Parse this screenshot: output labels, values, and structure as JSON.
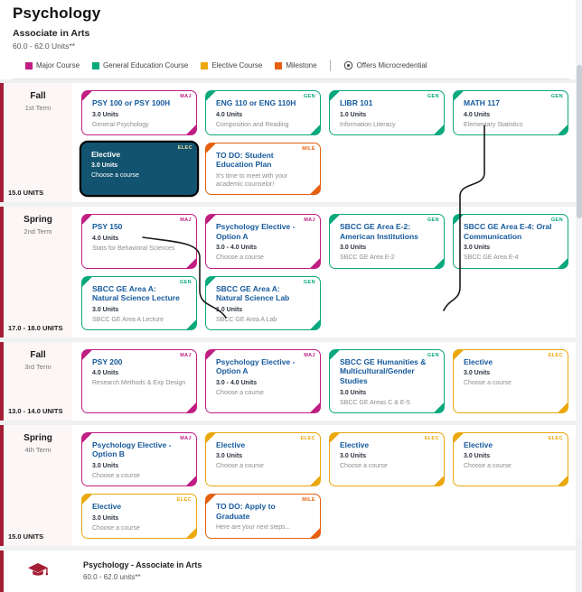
{
  "header": {
    "title": "Psychology",
    "subtitle": "Associate in Arts",
    "units": "60.0 - 62.0 Units**"
  },
  "legend": {
    "items": [
      {
        "label": "Major Course",
        "color": "#c01e82"
      },
      {
        "label": "General Education Course",
        "color": "#0aa87d"
      },
      {
        "label": "Elective Course",
        "color": "#eba70b"
      },
      {
        "label": "Milestone",
        "color": "#e5600f"
      }
    ],
    "microcredential_label": "Offers Microcredential"
  },
  "colors": {
    "major": "#c01e82",
    "ge": "#0aa87d",
    "elective": "#eba70b",
    "milestone": "#e5600f",
    "term_bar": "#a31e35",
    "selected_card_bg": "#12536f",
    "card_title": "#15599c"
  },
  "badges": {
    "major": "MAJ",
    "ge": "GEN",
    "elective": "ELEC",
    "milestone": "MILE"
  },
  "terms": [
    {
      "season": "Fall",
      "term": "1st Term",
      "units": "15.0 UNITS",
      "rows": [
        [
          {
            "title": "PSY 100 or PSY 100H",
            "units": "3.0 Units",
            "subtitle": "General Psychology",
            "type": "major"
          },
          {
            "title": "ENG 110 or ENG 110H",
            "units": "4.0 Units",
            "subtitle": "Composition and Reading",
            "type": "ge"
          },
          {
            "title": "LIBR 101",
            "units": "1.0 Units",
            "subtitle": "Information Literacy",
            "type": "ge"
          },
          {
            "title": "MATH 117",
            "units": "4.0 Units",
            "subtitle": "Elementary Statistics",
            "type": "ge"
          }
        ],
        [
          {
            "title": "Elective",
            "units": "3.0 Units",
            "subtitle": "Choose a course",
            "type": "elective",
            "selected": true
          },
          {
            "title": "TO DO: Student Education Plan",
            "units": "",
            "subtitle": "It's time to meet with your academic counselor!",
            "type": "milestone"
          }
        ]
      ]
    },
    {
      "season": "Spring",
      "term": "2nd Term",
      "units": "17.0 - 18.0 UNITS",
      "rows": [
        [
          {
            "title": "PSY 150",
            "units": "4.0 Units",
            "subtitle": "Stats for Behavioral Sciences",
            "type": "major"
          },
          {
            "title": "Psychology Elective - Option A",
            "units": "3.0 - 4.0 Units",
            "subtitle": "Choose a course",
            "type": "major"
          },
          {
            "title": "SBCC GE Area E-2: American Institutions",
            "units": "3.0 Units",
            "subtitle": "SBCC GE Area E-2",
            "type": "ge"
          },
          {
            "title": "SBCC GE Area E-4: Oral Communication",
            "units": "3.0 Units",
            "subtitle": "SBCC GE Area E-4",
            "type": "ge"
          }
        ],
        [
          {
            "title": "SBCC GE Area A: Natural Science Lecture",
            "units": "3.0 Units",
            "subtitle": "SBCC GE Area A Lecture",
            "type": "ge"
          },
          {
            "title": "SBCC GE Area A: Natural Science Lab",
            "units": "1.0 Units",
            "subtitle": "SBCC GE Area A Lab",
            "type": "ge"
          }
        ]
      ]
    },
    {
      "season": "Fall",
      "term": "3rd Term",
      "units": "13.0 - 14.0 UNITS",
      "rows": [
        [
          {
            "title": "PSY 200",
            "units": "4.0 Units",
            "subtitle": "Research Methods & Exp Design",
            "type": "major"
          },
          {
            "title": "Psychology Elective - Option A",
            "units": "3.0 - 4.0 Units",
            "subtitle": "Choose a course",
            "type": "major"
          },
          {
            "title": "SBCC GE Humanities & Multicultural/Gender Studies",
            "units": "3.0 Units",
            "subtitle": "SBCC GE Areas C & E-5",
            "type": "ge"
          },
          {
            "title": "Elective",
            "units": "3.0 Units",
            "subtitle": "Choose a course",
            "type": "elective"
          }
        ]
      ]
    },
    {
      "season": "Spring",
      "term": "4th Term",
      "units": "15.0 UNITS",
      "rows": [
        [
          {
            "title": "Psychology Elective - Option B",
            "units": "3.0 Units",
            "subtitle": "Choose a course",
            "type": "major"
          },
          {
            "title": "Elective",
            "units": "3.0 Units",
            "subtitle": "Choose a course",
            "type": "elective"
          },
          {
            "title": "Elective",
            "units": "3.0 Units",
            "subtitle": "Choose a course",
            "type": "elective"
          },
          {
            "title": "Elective",
            "units": "3.0 Units",
            "subtitle": "Choose a course",
            "type": "elective"
          }
        ],
        [
          {
            "title": "Elective",
            "units": "3.0 Units",
            "subtitle": "Choose a course",
            "type": "elective"
          },
          {
            "title": "TO DO: Apply to Graduate",
            "units": "",
            "subtitle": "Here are your next steps...",
            "type": "milestone"
          }
        ]
      ]
    }
  ],
  "completion": {
    "title": "Psychology - Associate in Arts",
    "units": "60.0 - 62.0 units**"
  }
}
